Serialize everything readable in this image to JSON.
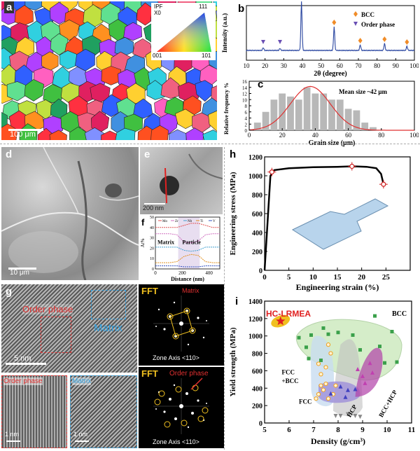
{
  "panel_a": {
    "label": "a",
    "legend_title": "IPF\nX0",
    "legend_title_line1": "IPF",
    "legend_title_line2": "X0",
    "corner_111": "111",
    "corner_001": "001",
    "corner_101": "101",
    "scalebar": "100 μm"
  },
  "panel_b": {
    "label": "b",
    "chart_data": {
      "type": "line",
      "xlabel": "2θ (degree)",
      "ylabel": "Intensity (a.u.)",
      "xlim": [
        10,
        100
      ],
      "xticks": [
        10,
        20,
        30,
        40,
        50,
        60,
        70,
        80,
        90,
        100
      ],
      "legend": [
        "BCC",
        "Order phase"
      ],
      "bcc_peaks": [
        39.5,
        57,
        71,
        84,
        96
      ],
      "order_peaks": [
        19,
        28
      ],
      "colors": {
        "line": "#2a46a0",
        "bcc": "#f08c28",
        "order": "#6a4fb3"
      }
    }
  },
  "panel_c": {
    "label": "c",
    "chart_data": {
      "type": "bar",
      "xlabel": "Grain size (μm)",
      "ylabel": "Relative frequency %",
      "annotation": "Mean size ~42 μm",
      "xlim": [
        0,
        100
      ],
      "ylim": [
        0,
        16
      ],
      "xticks": [
        0,
        20,
        40,
        60,
        80,
        100
      ],
      "yticks": [
        0,
        2,
        4,
        6,
        8,
        10,
        12,
        14,
        16
      ],
      "bin_centers": [
        5,
        10,
        15,
        20,
        25,
        30,
        35,
        40,
        45,
        50,
        55,
        60,
        65,
        70,
        75
      ],
      "values": [
        2.5,
        6,
        10,
        12,
        11,
        10,
        14,
        12,
        12,
        10,
        10,
        7,
        6.5,
        2.5,
        1
      ],
      "fit_color": "#e03030"
    }
  },
  "panel_d": {
    "label": "d",
    "scalebar": "10 μm"
  },
  "panel_e": {
    "label": "e",
    "scalebar": "200 nm"
  },
  "panel_f": {
    "label": "f",
    "chart_data": {
      "type": "line",
      "xlabel": "Distance (nm)",
      "ylabel": "At%",
      "xlim": [
        0,
        480
      ],
      "ylim": [
        0,
        50
      ],
      "xticks": [
        0,
        200,
        400
      ],
      "yticks": [
        0,
        10,
        20,
        30,
        40,
        50
      ],
      "series_names": [
        "Mo",
        "Zr",
        "Nb",
        "Ti",
        "V"
      ],
      "region_labels": [
        "Matrix",
        "Particle"
      ],
      "series": [
        {
          "name": "Mo",
          "color": "#e05050",
          "values": [
            40,
            40,
            40,
            40,
            42,
            44,
            44,
            42,
            40,
            40
          ]
        },
        {
          "name": "Zr",
          "color": "#d070c0",
          "values": [
            34,
            34,
            34,
            33,
            26,
            25,
            27,
            33,
            34,
            34
          ]
        },
        {
          "name": "Nb",
          "color": "#40a0d0",
          "values": [
            21,
            21,
            21,
            21,
            18,
            17,
            18,
            21,
            21,
            21
          ]
        },
        {
          "name": "Ti",
          "color": "#e09020",
          "values": [
            6,
            6,
            6,
            7,
            12,
            14,
            13,
            7,
            6,
            6
          ]
        },
        {
          "name": "V",
          "color": "#3050c0",
          "values": [
            3,
            3,
            3,
            3,
            2,
            2,
            2,
            3,
            3,
            3
          ]
        }
      ]
    }
  },
  "panel_g": {
    "label": "g",
    "order_phase": "Order phase",
    "matrix": "Matrix",
    "scalebar": "5 nm",
    "inset_left_label": "Order phase",
    "inset_left_scale": "1 nm",
    "inset_right_label": "Matrix",
    "inset_right_scale": "1 nm",
    "fft_top_tag": "FFT",
    "fft_top_title": "Matrix",
    "fft_top_zone": "Zone Axis <110>",
    "fft_bottom_tag": "FFT",
    "fft_bottom_title": "Order phase",
    "fft_bottom_zone": "Zone Axis <110>"
  },
  "panel_h": {
    "label": "h",
    "chart_data": {
      "type": "line",
      "xlabel": "Engineering strain (%)",
      "ylabel": "Engineering stress (MPa)",
      "xlim": [
        0,
        30
      ],
      "ylim": [
        0,
        1200
      ],
      "xticks": [
        0,
        5,
        10,
        15,
        20,
        25
      ],
      "yticks": [
        0,
        200,
        400,
        600,
        800,
        1000,
        1200
      ],
      "x": [
        0,
        1.2,
        2,
        5,
        10,
        15,
        18,
        21,
        23,
        24,
        24.5
      ],
      "y": [
        0,
        1000,
        1060,
        1080,
        1090,
        1095,
        1100,
        1095,
        1080,
        1020,
        910
      ],
      "markers": [
        {
          "x": 1.5,
          "y": 1040
        },
        {
          "x": 18,
          "y": 1100
        },
        {
          "x": 24.5,
          "y": 910
        }
      ],
      "marker_color": "#d02020"
    }
  },
  "panel_i": {
    "label": "i",
    "chart_data": {
      "type": "scatter",
      "xlabel": "Density (g/cm³)",
      "ylabel": "Yield strength (MPa)",
      "xlim": [
        5,
        11
      ],
      "ylim": [
        0,
        1400
      ],
      "xticks": [
        5,
        6,
        7,
        8,
        9,
        10,
        11
      ],
      "yticks": [
        0,
        200,
        400,
        600,
        800,
        1000,
        1200,
        1400
      ],
      "highlight_label": "HC-LRMEA",
      "highlight": {
        "x": 5.65,
        "y": 1170
      },
      "region_labels": [
        "BCC",
        "FCC +BCC",
        "FCC",
        "HCP",
        "BCC+HCP"
      ],
      "bcc_points": [
        [
          6.7,
          870
        ],
        [
          6.4,
          980
        ],
        [
          7.4,
          1090
        ],
        [
          7.6,
          1020
        ],
        [
          6.9,
          1010
        ],
        [
          8.0,
          1040
        ],
        [
          8.6,
          1010
        ],
        [
          9.5,
          1230
        ],
        [
          9.7,
          880
        ],
        [
          10.2,
          1050
        ],
        [
          9.9,
          690
        ],
        [
          10.4,
          700
        ],
        [
          8.9,
          840
        ],
        [
          7.3,
          720
        ],
        [
          6.8,
          740
        ]
      ],
      "fcc_points": [
        [
          7.1,
          280
        ],
        [
          7.2,
          330
        ],
        [
          7.4,
          380
        ],
        [
          7.3,
          560
        ],
        [
          7.5,
          640
        ],
        [
          7.2,
          680
        ],
        [
          7.6,
          900
        ],
        [
          7.7,
          800
        ],
        [
          7.8,
          330
        ],
        [
          7.9,
          430
        ],
        [
          7.5,
          450
        ],
        [
          7.3,
          430
        ],
        [
          7.6,
          280
        ]
      ],
      "hcp_points": [
        [
          8.1,
          80
        ],
        [
          8.4,
          100
        ],
        [
          8.7,
          80
        ],
        [
          8.9,
          70
        ],
        [
          7.9,
          80
        ]
      ],
      "purple_points": [
        [
          7.7,
          340
        ],
        [
          8.1,
          420
        ],
        [
          8.4,
          380
        ],
        [
          8.7,
          390
        ],
        [
          8.3,
          300
        ]
      ],
      "bcc_hcp_points": [
        [
          9.0,
          540
        ],
        [
          9.3,
          690
        ],
        [
          9.1,
          460
        ],
        [
          9.4,
          580
        ],
        [
          8.8,
          620
        ]
      ],
      "colors": {
        "bcc": "#3aa04a",
        "fcc": "#f0a020",
        "hcp": "#888888",
        "purple": "#4040c0",
        "bcc_hcp": "#c040b0",
        "highlight": "#e02020"
      }
    }
  }
}
